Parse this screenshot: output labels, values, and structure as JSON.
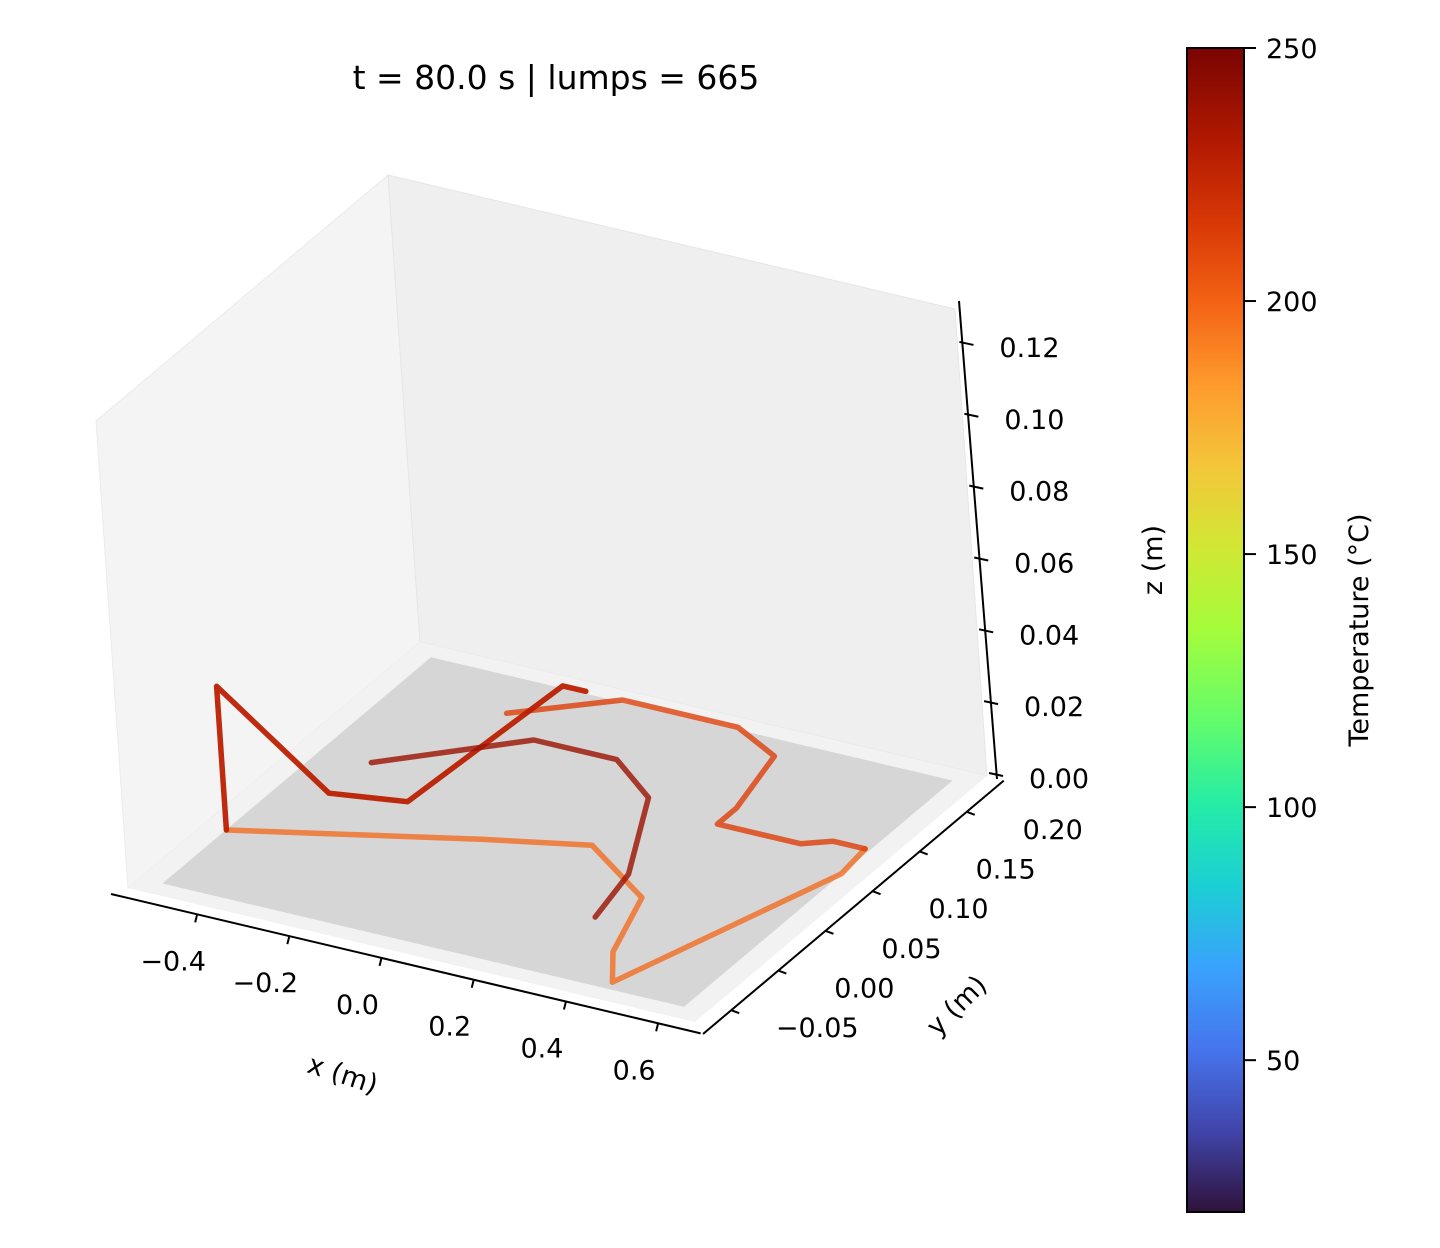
{
  "title": "t = 80.0 s  |  lumps = 665",
  "chart_data": {
    "type": "line",
    "projection": "3d",
    "title": "t = 80.0 s  |  lumps = 665",
    "xlabel": "x (m)",
    "ylabel": "y (m)",
    "zlabel": "z (m)",
    "xlim": [
      -0.55,
      0.68
    ],
    "ylim": [
      -0.08,
      0.23
    ],
    "zlim": [
      0.0,
      0.13
    ],
    "x_ticks": [
      {
        "value": -0.4,
        "label": "−0.4"
      },
      {
        "value": -0.2,
        "label": "−0.2"
      },
      {
        "value": 0.0,
        "label": "0.0"
      },
      {
        "value": 0.2,
        "label": "0.2"
      },
      {
        "value": 0.4,
        "label": "0.4"
      },
      {
        "value": 0.6,
        "label": "0.6"
      }
    ],
    "y_ticks": [
      {
        "value": -0.05,
        "label": "−0.05"
      },
      {
        "value": 0.0,
        "label": "0.00"
      },
      {
        "value": 0.05,
        "label": "0.05"
      },
      {
        "value": 0.1,
        "label": "0.10"
      },
      {
        "value": 0.15,
        "label": "0.15"
      },
      {
        "value": 0.2,
        "label": "0.20"
      }
    ],
    "z_ticks": [
      {
        "value": 0.0,
        "label": "0.00"
      },
      {
        "value": 0.02,
        "label": "0.02"
      },
      {
        "value": 0.04,
        "label": "0.04"
      },
      {
        "value": 0.06,
        "label": "0.06"
      },
      {
        "value": 0.08,
        "label": "0.08"
      },
      {
        "value": 0.1,
        "label": "0.10"
      },
      {
        "value": 0.12,
        "label": "0.12"
      }
    ],
    "colorbar": {
      "label": "Temperature (°C)",
      "colormap": "turbo",
      "range": [
        20,
        250
      ],
      "ticks": [
        {
          "value": 50,
          "label": "50"
        },
        {
          "value": 100,
          "label": "100"
        },
        {
          "value": 150,
          "label": "150"
        },
        {
          "value": 200,
          "label": "200"
        },
        {
          "value": 250,
          "label": "250"
        }
      ]
    },
    "series": [
      {
        "temperature": 200,
        "opacity": 0.75,
        "points": [
          [
            -0.5,
            0.0,
            0.0
          ],
          [
            -0.32,
            0.02,
            0.0
          ],
          [
            -0.05,
            0.05,
            0.0
          ],
          [
            0.15,
            0.07,
            0.0
          ],
          [
            0.34,
            0.03,
            0.0
          ],
          [
            0.4,
            -0.03,
            0.0
          ],
          [
            0.46,
            -0.06,
            0.0
          ],
          [
            0.63,
            0.1,
            0.0
          ],
          [
            0.62,
            0.13,
            0.0
          ]
        ]
      },
      {
        "temperature": 215,
        "opacity": 0.8,
        "points": [
          [
            -0.26,
            0.18,
            0.0
          ],
          [
            -0.09,
            0.22,
            0.0
          ],
          [
            0.16,
            0.22,
            0.0
          ],
          [
            0.28,
            0.2,
            0.0
          ],
          [
            0.32,
            0.14,
            0.0
          ],
          [
            0.32,
            0.12,
            0.0
          ],
          [
            0.5,
            0.12,
            0.0
          ],
          [
            0.55,
            0.13,
            0.0
          ],
          [
            0.62,
            0.13,
            0.0
          ]
        ]
      },
      {
        "temperature": 230,
        "opacity": 0.95,
        "points": [
          [
            -0.5,
            0.0,
            0.0
          ],
          [
            -0.5,
            0.0,
            0.04
          ],
          [
            -0.4,
            0.06,
            0.0
          ],
          [
            -0.25,
            0.07,
            0.0
          ],
          [
            -0.22,
            0.22,
            0.0
          ],
          [
            -0.17,
            0.22,
            0.0
          ]
        ]
      },
      {
        "temperature": 240,
        "opacity": 0.8,
        "points": [
          [
            -0.39,
            0.1,
            0.0
          ],
          [
            -0.16,
            0.16,
            0.0
          ],
          [
            0.02,
            0.16,
            0.0
          ],
          [
            0.15,
            0.13,
            0.0
          ],
          [
            0.27,
            0.05,
            0.0
          ],
          [
            0.3,
            0.0,
            0.0
          ]
        ]
      }
    ]
  }
}
